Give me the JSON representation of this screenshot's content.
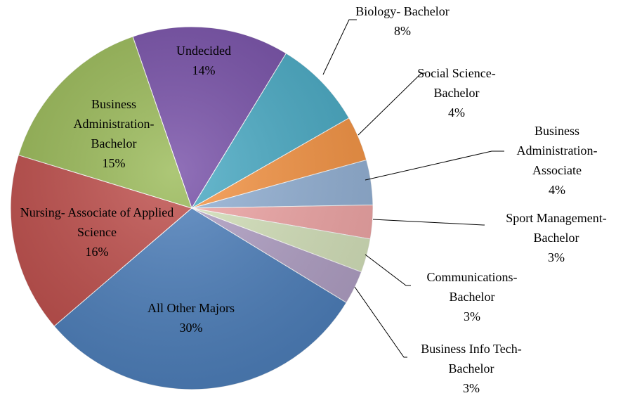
{
  "chart_data": {
    "type": "pie",
    "categories": [
      "Undecided",
      "Biology- Bachelor",
      "Social Science- Bachelor",
      "Business Administration- Associate",
      "Sport Management- Bachelor",
      "Communications- Bachelor",
      "Business Info Tech- Bachelor",
      "All Other Majors",
      "Nursing- Associate of Applied Science",
      "Business Administration- Bachelor"
    ],
    "values": [
      14,
      8,
      4,
      4,
      3,
      3,
      3,
      30,
      16,
      15
    ],
    "value_labels": [
      "14%",
      "8%",
      "4%",
      "4%",
      "3%",
      "3%",
      "3%",
      "30%",
      "16%",
      "15%"
    ],
    "colors": [
      "#7851a9",
      "#4bacc6",
      "#f79646",
      "#95b3d7",
      "#f2a8a8",
      "#d7e4bd",
      "#b3a2c7",
      "#4f81bd",
      "#c0504d",
      "#9bbb59"
    ]
  }
}
